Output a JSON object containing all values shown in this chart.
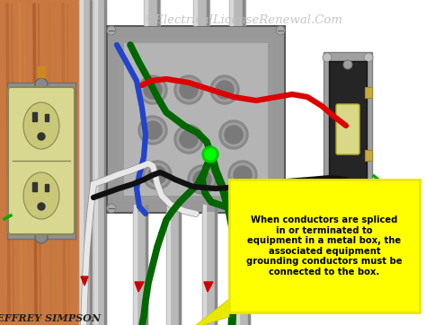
{
  "title": "©ElectricalLicenseRenewal.Com",
  "author": "Jeffrey Simpson",
  "annotation_text": "When conductors are spliced\nin or terminated to\nequipment in a metal box, the\nassociated equipment\ngrounding conductors must be\nconnected to the box.",
  "bg_color": "#ffffff",
  "wood_color": "#c87840",
  "wood_color2": "#a05828",
  "wood_color3": "#b06830",
  "box_outer": "#686868",
  "box_rim": "#989898",
  "box_inner": "#b0b0b0",
  "box_deep": "#888888",
  "conduit_color": "#b8b8b8",
  "conduit_light": "#d8d8d8",
  "conduit_dark": "#888888",
  "outlet_body": "#d8d890",
  "outlet_face": "#c8c878",
  "switch_plate": "#a8a8a8",
  "switch_body": "#303030",
  "switch_toggle": "#d8d888",
  "annotation_bg": "#ffff00",
  "annotation_border": "#e8e800",
  "wire_red": "#dd0000",
  "wire_black": "#111111",
  "wire_white": "#e8e8e8",
  "wire_green": "#006600",
  "wire_green_bright": "#00aa00",
  "wire_blue": "#2244cc",
  "wire_nut_green": "#00cc00"
}
